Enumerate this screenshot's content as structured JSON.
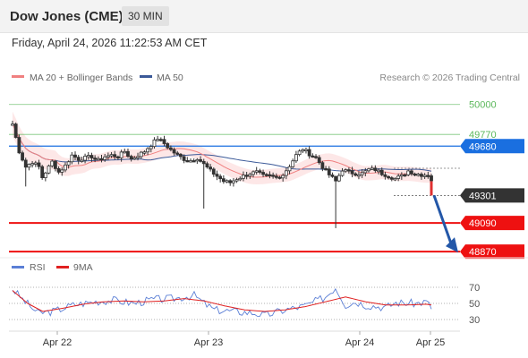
{
  "header": {
    "instrument": "Dow Jones (CME)",
    "timeframe": "30 MIN",
    "datetime": "Friday, April 24, 2026 11:22:53 AM CET"
  },
  "legend": {
    "ma20_label": "MA 20 + Bollinger Bands",
    "ma50_label": "MA 50",
    "credit": "Research © 2026 Trading Central",
    "rsi_label": "RSI",
    "rsi_ma_label": "9MA"
  },
  "colors": {
    "ma20": "#f08080",
    "ma50": "#3b5998",
    "bollinger_fill": "#fde3e3",
    "candle": "#333333",
    "target": "#5cb85c",
    "pivot": "#1a6fe0",
    "support": "#ee1111",
    "last_price": "#333333",
    "arrow": "#2357a8",
    "rsi": "#5b7fd6",
    "rsi_ma": "#e02020"
  },
  "chart_data": {
    "type": "candlestick",
    "instrument": "Dow Jones (CME)",
    "interval": "30 MIN",
    "x_tick_labels": [
      "Apr 22",
      "Apr 23",
      "Apr 24",
      "Apr 25"
    ],
    "price_ylim": [
      48850,
      50060
    ],
    "levels": [
      {
        "value": 50000,
        "label": "50000",
        "kind": "target"
      },
      {
        "value": 49770,
        "label": "49770",
        "kind": "target"
      },
      {
        "value": 49680,
        "label": "49680",
        "kind": "pivot"
      },
      {
        "value": 49301,
        "label": "49301",
        "kind": "last"
      },
      {
        "value": 49090,
        "label": "49090",
        "kind": "support"
      },
      {
        "value": 48870,
        "label": "48870",
        "kind": "support"
      }
    ],
    "forecast": {
      "from": 49301,
      "to": 48870
    },
    "price_path": [
      [
        0.0,
        49850
      ],
      [
        2.0,
        49640
      ],
      [
        4.0,
        49520
      ],
      [
        6.0,
        49560
      ],
      [
        8.0,
        49520
      ],
      [
        9.0,
        49440
      ],
      [
        12.0,
        49560
      ],
      [
        14.0,
        49480
      ],
      [
        16.0,
        49530
      ],
      [
        18.0,
        49610
      ],
      [
        20.0,
        49580
      ],
      [
        22.0,
        49590
      ],
      [
        24.0,
        49600
      ],
      [
        26.0,
        49570
      ],
      [
        28.0,
        49600
      ],
      [
        30.0,
        49610
      ],
      [
        32.0,
        49600
      ],
      [
        34.0,
        49640
      ],
      [
        36.0,
        49580
      ],
      [
        38.0,
        49610
      ],
      [
        40.0,
        49640
      ],
      [
        42.0,
        49690
      ],
      [
        44.0,
        49740
      ],
      [
        46.0,
        49700
      ],
      [
        48.0,
        49650
      ],
      [
        50.0,
        49610
      ],
      [
        52.0,
        49580
      ],
      [
        54.0,
        49570
      ],
      [
        56.0,
        49590
      ],
      [
        58.0,
        49540
      ],
      [
        60.0,
        49490
      ],
      [
        62.0,
        49450
      ],
      [
        64.0,
        49410
      ],
      [
        66.0,
        49400
      ],
      [
        68.0,
        49430
      ],
      [
        70.0,
        49450
      ],
      [
        72.0,
        49470
      ],
      [
        74.0,
        49480
      ],
      [
        76.0,
        49450
      ],
      [
        78.0,
        49450
      ],
      [
        80.0,
        49440
      ],
      [
        82.0,
        49460
      ],
      [
        84.0,
        49530
      ],
      [
        86.0,
        49610
      ],
      [
        88.0,
        49660
      ],
      [
        90.0,
        49620
      ],
      [
        92.0,
        49590
      ],
      [
        94.0,
        49520
      ],
      [
        96.0,
        49460
      ],
      [
        98.0,
        49410
      ],
      [
        100.0,
        49500
      ],
      [
        102.0,
        49480
      ],
      [
        104.0,
        49470
      ],
      [
        106.0,
        49470
      ],
      [
        108.0,
        49500
      ],
      [
        110.0,
        49500
      ],
      [
        112.0,
        49470
      ],
      [
        114.0,
        49450
      ],
      [
        116.0,
        49430
      ],
      [
        118.0,
        49450
      ],
      [
        120.0,
        49490
      ],
      [
        122.0,
        49470
      ],
      [
        124.0,
        49460
      ],
      [
        126.0,
        49460
      ],
      [
        127.0,
        49420
      ]
    ],
    "x_ticks_index": [
      12,
      42,
      68,
      83
    ],
    "rsi": {
      "levels": [
        70,
        50,
        30
      ],
      "ylim": [
        20,
        80
      ],
      "rsi_path": [
        [
          0.0,
          68
        ],
        [
          2.0,
          55
        ],
        [
          5.0,
          38
        ],
        [
          8.0,
          40
        ],
        [
          12.0,
          48
        ],
        [
          16.0,
          52
        ],
        [
          20.0,
          54
        ],
        [
          24.0,
          50
        ],
        [
          28.0,
          55
        ],
        [
          32.0,
          56
        ],
        [
          36.0,
          60
        ],
        [
          38.0,
          50
        ],
        [
          40.0,
          42
        ],
        [
          44.0,
          40
        ],
        [
          48.0,
          38
        ],
        [
          50.0,
          35
        ],
        [
          54.0,
          42
        ],
        [
          58.0,
          47
        ],
        [
          62.0,
          58
        ],
        [
          64.0,
          70
        ],
        [
          66.0,
          48
        ],
        [
          68.0,
          52
        ],
        [
          70.0,
          48
        ],
        [
          74.0,
          45
        ],
        [
          76.0,
          51
        ],
        [
          80.0,
          50
        ],
        [
          82.0,
          52
        ],
        [
          83.0,
          45
        ]
      ],
      "rsi_ma_path": [
        [
          0.0,
          66
        ],
        [
          3.0,
          50
        ],
        [
          6.0,
          40
        ],
        [
          10.0,
          44
        ],
        [
          14.0,
          49
        ],
        [
          18.0,
          52
        ],
        [
          22.0,
          53
        ],
        [
          26.0,
          52
        ],
        [
          30.0,
          53
        ],
        [
          34.0,
          56
        ],
        [
          38.0,
          53
        ],
        [
          42.0,
          47
        ],
        [
          46.0,
          42
        ],
        [
          50.0,
          40
        ],
        [
          54.0,
          42
        ],
        [
          58.0,
          46
        ],
        [
          62.0,
          52
        ],
        [
          66.0,
          58
        ],
        [
          70.0,
          52
        ],
        [
          74.0,
          48
        ],
        [
          78.0,
          48
        ],
        [
          82.0,
          49
        ],
        [
          83.0,
          48
        ]
      ]
    }
  }
}
